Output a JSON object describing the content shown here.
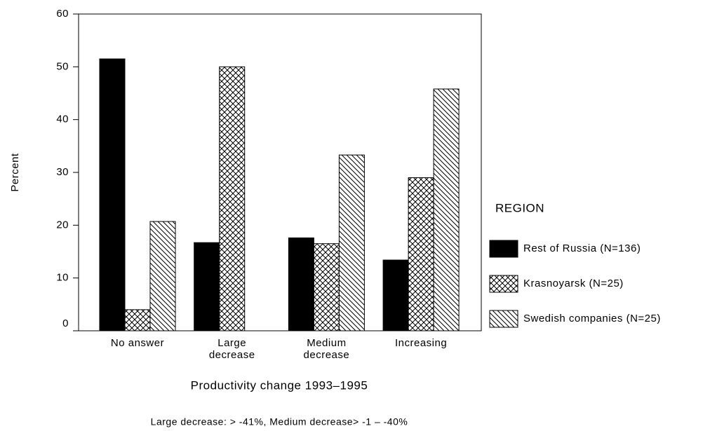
{
  "chart_data": {
    "type": "bar",
    "categories": [
      "No answer",
      "Large\ndecrease",
      "Medium\ndecrease",
      "Increasing"
    ],
    "series": [
      {
        "name": "Rest of Russia (N=136)",
        "color": "#000000",
        "pattern": "solid",
        "values": [
          51.5,
          16.7,
          17.6,
          13.4
        ]
      },
      {
        "name": "Krasnoyarsk (N=25)",
        "color": "#000000",
        "pattern": "crosshatch",
        "values": [
          4,
          50,
          16.5,
          29
        ]
      },
      {
        "name": "Swedish companies (N=25)",
        "color": "#000000",
        "pattern": "diagonal",
        "values": [
          20.7,
          0,
          33.3,
          45.8
        ]
      }
    ],
    "ylabel": "Percent",
    "xlabel": "Productivity change 1993–1995",
    "legend_title": "REGION",
    "note": "Large decrease: > -41%, Medium decrease> -1 – -40%",
    "ylim": [
      0,
      60
    ],
    "yticks": [
      0,
      10,
      20,
      30,
      40,
      50,
      60
    ],
    "grid": false
  }
}
